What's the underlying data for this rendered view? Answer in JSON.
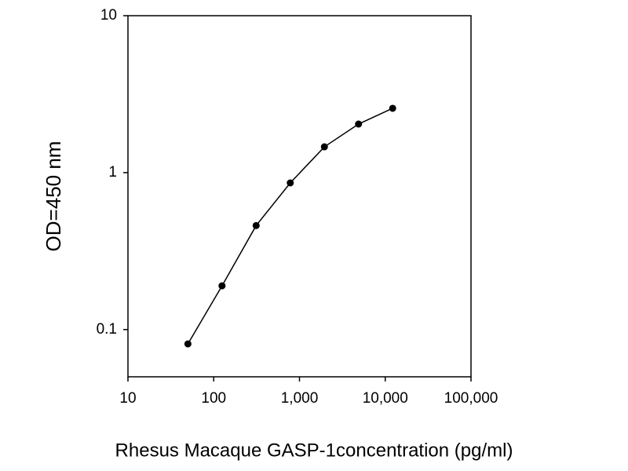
{
  "chart_data": {
    "type": "line",
    "x_label": "Rhesus Macaque GASP-1concentration (pg/ml)",
    "y_label": "OD=450 nm",
    "x": [
      50,
      125,
      312.5,
      781,
      1953,
      4883,
      12207
    ],
    "series": [
      {
        "color": "#000000",
        "values": [
          0.081,
          0.19,
          0.46,
          0.86,
          1.46,
          2.04,
          2.57
        ]
      }
    ],
    "xlim": [
      10,
      100000
    ],
    "xticks": [
      10,
      100,
      {
        "value": 1000,
        "label": "1,000"
      },
      {
        "value": 10000,
        "label": "10,000"
      },
      {
        "value": 100000,
        "label": "100,000"
      }
    ],
    "ylim": [
      0.05,
      10
    ],
    "yticks": [
      0.1,
      1,
      10
    ],
    "xscale": "log",
    "yscale": "log"
  }
}
